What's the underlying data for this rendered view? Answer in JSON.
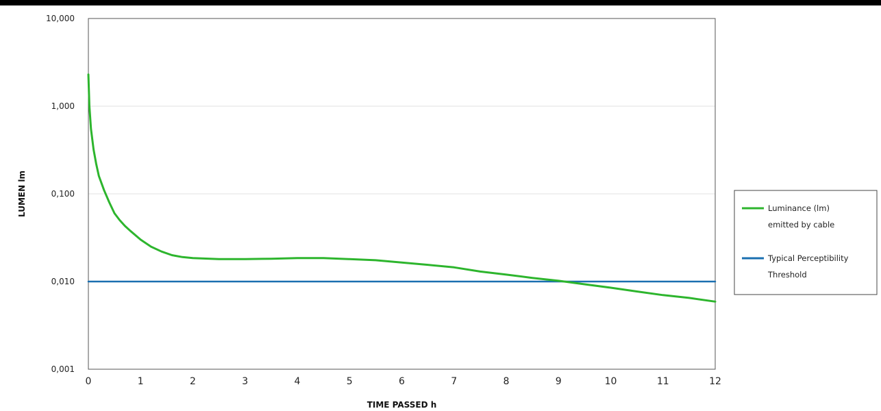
{
  "chart_data": {
    "type": "line",
    "xlabel": "TIME PASSED h",
    "ylabel": "LUMEN lm",
    "x_ticks": [
      "0",
      "1",
      "2",
      "3",
      "4",
      "5",
      "6",
      "7",
      "8",
      "9",
      "10",
      "11",
      "12"
    ],
    "y_ticks": [
      {
        "value": 0.001,
        "label": "0,001"
      },
      {
        "value": 0.01,
        "label": "0,010"
      },
      {
        "value": 0.1,
        "label": "0,100"
      },
      {
        "value": 1,
        "label": "1,000"
      },
      {
        "value": 10,
        "label": "10,000"
      }
    ],
    "xlim": [
      0,
      12
    ],
    "ylim": [
      0.001,
      10
    ],
    "y_scale": "log",
    "grid": "horizontal",
    "legend_position": "right",
    "series": [
      {
        "name": "Luminance (lm) emitted by cable",
        "legend_lines": [
          "Luminance (lm)",
          "emitted by cable"
        ],
        "color": "#2db52d",
        "points": [
          [
            0.0,
            2.3
          ],
          [
            0.02,
            1.0
          ],
          [
            0.05,
            0.55
          ],
          [
            0.1,
            0.32
          ],
          [
            0.15,
            0.22
          ],
          [
            0.2,
            0.16
          ],
          [
            0.3,
            0.11
          ],
          [
            0.4,
            0.08
          ],
          [
            0.5,
            0.06
          ],
          [
            0.6,
            0.05
          ],
          [
            0.7,
            0.043
          ],
          [
            0.8,
            0.038
          ],
          [
            1.0,
            0.03
          ],
          [
            1.2,
            0.025
          ],
          [
            1.4,
            0.022
          ],
          [
            1.6,
            0.02
          ],
          [
            1.8,
            0.019
          ],
          [
            2.0,
            0.0185
          ],
          [
            2.5,
            0.018
          ],
          [
            3.0,
            0.018
          ],
          [
            3.5,
            0.0182
          ],
          [
            4.0,
            0.0185
          ],
          [
            4.5,
            0.0185
          ],
          [
            5.0,
            0.018
          ],
          [
            5.5,
            0.0175
          ],
          [
            6.0,
            0.0165
          ],
          [
            6.5,
            0.0155
          ],
          [
            7.0,
            0.0145
          ],
          [
            7.5,
            0.013
          ],
          [
            8.0,
            0.012
          ],
          [
            8.5,
            0.011
          ],
          [
            9.0,
            0.0102
          ],
          [
            9.5,
            0.0093
          ],
          [
            10.0,
            0.0085
          ],
          [
            10.5,
            0.0077
          ],
          [
            11.0,
            0.007
          ],
          [
            11.5,
            0.0065
          ],
          [
            12.0,
            0.0059
          ]
        ]
      },
      {
        "name": "Typical Perceptibility Threshold",
        "legend_lines": [
          "Typical Perceptibility",
          "Threshold"
        ],
        "color": "#1a6fb0",
        "points": [
          [
            0,
            0.01
          ],
          [
            12,
            0.01
          ]
        ]
      }
    ]
  }
}
